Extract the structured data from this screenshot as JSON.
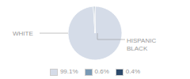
{
  "chart_data": {
    "type": "pie",
    "categories": [
      "99.1%",
      "0.6%",
      "0.4%"
    ],
    "values": [
      99.1,
      0.6,
      0.4
    ],
    "colors": [
      "#d5dce8",
      "#7a9ab5",
      "#2d4a6b"
    ],
    "legend": "bottom",
    "annotations": [
      "WHITE",
      "HISPANIC\nBLACK"
    ]
  }
}
